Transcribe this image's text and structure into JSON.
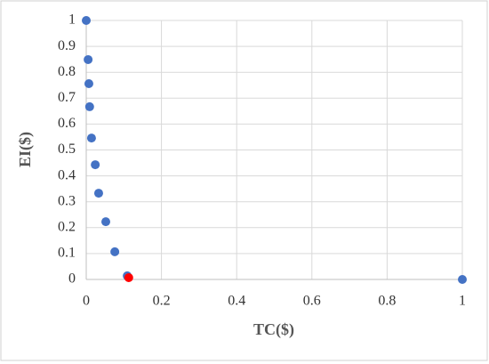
{
  "chart_data": {
    "type": "scatter",
    "x_label": "TC($)",
    "y_label": "EI($)",
    "series": [
      {
        "color": "#4472c4",
        "x": [
          0,
          0.005,
          0.007,
          0.009,
          0.014,
          0.024,
          0.033,
          0.052,
          0.076,
          0.109,
          1
        ],
        "y": [
          1,
          0.849,
          0.756,
          0.667,
          0.546,
          0.443,
          0.333,
          0.223,
          0.107,
          0.014,
          0
        ]
      },
      {
        "color": "#ff0000",
        "x": [
          0.113
        ],
        "y": [
          0.007
        ]
      }
    ],
    "xlim": [
      0,
      1
    ],
    "xticks": [
      0,
      0.2,
      0.4,
      0.6,
      0.8,
      1
    ],
    "ylim": [
      0,
      1
    ],
    "yticks": [
      0,
      0.1,
      0.2,
      0.3,
      0.4,
      0.5,
      0.6,
      0.7,
      0.8,
      0.9,
      1
    ],
    "grid": true
  }
}
